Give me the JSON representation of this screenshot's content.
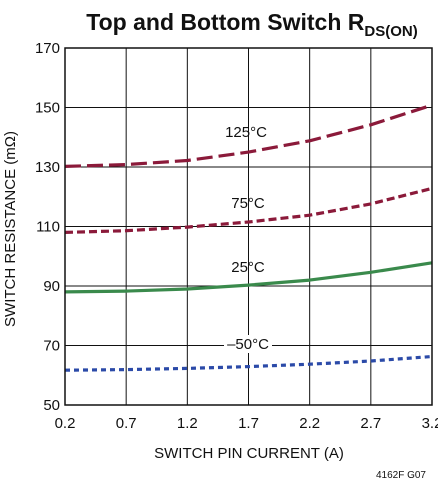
{
  "chart_data": {
    "type": "line",
    "title": {
      "main": "Top and Bottom Switch R",
      "subscript": "DS(ON)"
    },
    "xlabel": "SWITCH PIN CURRENT (A)",
    "ylabel": "SWITCH RESISTANCE (mΩ)",
    "xlim": [
      0.2,
      3.2
    ],
    "ylim": [
      50,
      170
    ],
    "x_ticks": [
      0.2,
      0.7,
      1.2,
      1.7,
      2.2,
      2.7,
      3.2
    ],
    "x_tick_labels": [
      "0.2",
      "0.7",
      "1.2",
      "1.7",
      "2.2",
      "2.7",
      "3.2"
    ],
    "y_ticks": [
      50,
      70,
      90,
      110,
      130,
      150,
      170
    ],
    "y_tick_labels": [
      "50",
      "70",
      "90",
      "110",
      "130",
      "150",
      "170"
    ],
    "grid": true,
    "footnote": "4162F G07",
    "series": [
      {
        "name": "125°C",
        "color": "#8b1a3a",
        "dash": "long-dash",
        "x": [
          0.2,
          0.7,
          1.2,
          1.7,
          2.2,
          2.7,
          3.2
        ],
        "y": [
          130.2,
          130.8,
          132.2,
          135,
          138.8,
          144.2,
          150.8
        ]
      },
      {
        "name": "75°C",
        "color": "#8b1a3a",
        "dash": "short-dash",
        "x": [
          0.2,
          0.7,
          1.2,
          1.7,
          2.2,
          2.7,
          3.2
        ],
        "y": [
          108,
          108.6,
          109.8,
          111.5,
          113.8,
          117.6,
          122.8
        ]
      },
      {
        "name": "25°C",
        "color": "#3a8a4c",
        "dash": "solid",
        "x": [
          0.2,
          0.7,
          1.2,
          1.7,
          2.2,
          2.7,
          3.2
        ],
        "y": [
          88,
          88.3,
          89,
          90.3,
          92,
          94.6,
          97.8
        ]
      },
      {
        "name": "–50°C",
        "color": "#2b4aa8",
        "dash": "dotted",
        "x": [
          0.2,
          0.7,
          1.2,
          1.7,
          2.2,
          2.7,
          3.2
        ],
        "y": [
          61.7,
          61.9,
          62.3,
          62.9,
          63.7,
          64.8,
          66.3
        ]
      }
    ]
  }
}
